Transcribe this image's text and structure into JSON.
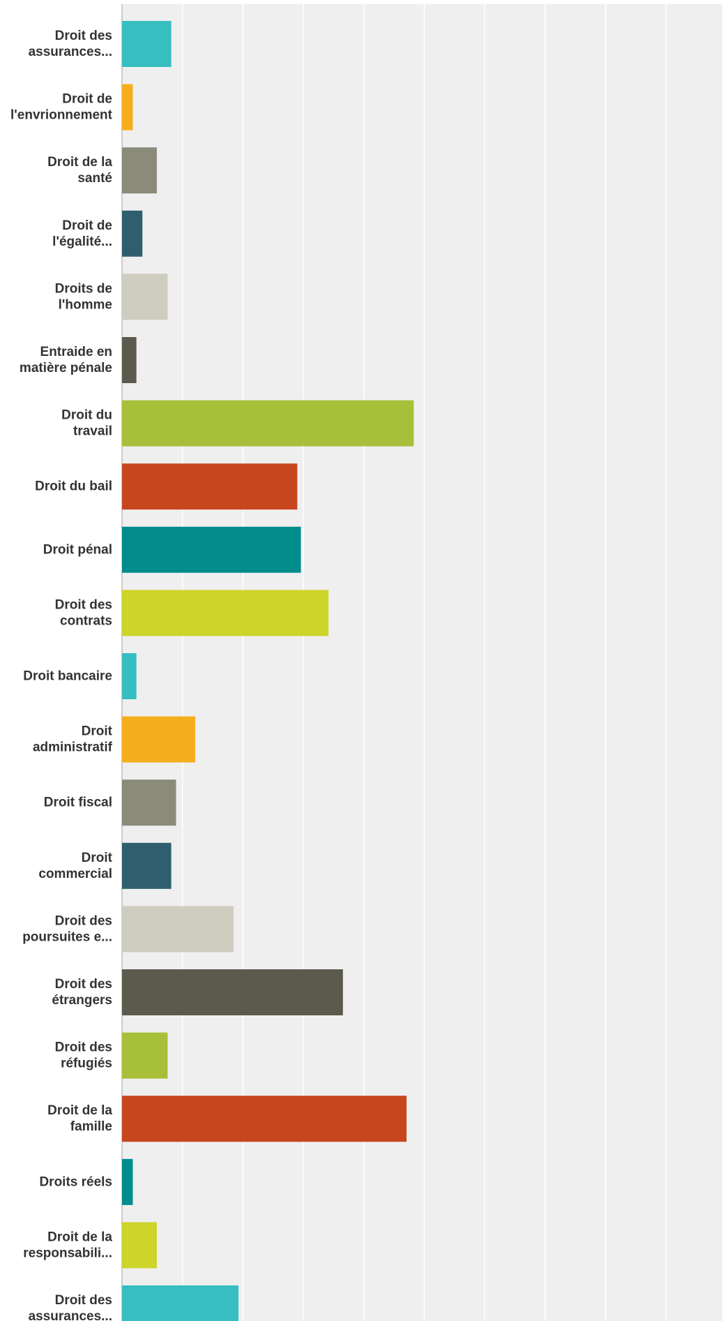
{
  "chart_data": {
    "type": "bar",
    "orientation": "horizontal",
    "title": "",
    "xlabel": "",
    "ylabel": "",
    "xlim": [
      0,
      50
    ],
    "grid": true,
    "legend": "none",
    "tick_labels_visible": false,
    "categories": [
      [
        "Droit des",
        "assurances..."
      ],
      [
        "Droit de",
        "l'envrionnement"
      ],
      [
        "Droit de la",
        "santé"
      ],
      [
        "Droit de",
        "l'égalité..."
      ],
      [
        "Droits de",
        "l'homme"
      ],
      [
        "Entraide en",
        "matière pénale"
      ],
      [
        "Droit du",
        "travail"
      ],
      [
        "Droit du bail"
      ],
      [
        "Droit pénal"
      ],
      [
        "Droit des",
        "contrats"
      ],
      [
        "Droit bancaire"
      ],
      [
        "Droit",
        "administratif"
      ],
      [
        "Droit fiscal"
      ],
      [
        "Droit",
        "commercial"
      ],
      [
        "Droit des",
        "poursuites e..."
      ],
      [
        "Droit des",
        "étrangers"
      ],
      [
        "Droit des",
        "réfugiés"
      ],
      [
        "Droit de la",
        "famille"
      ],
      [
        "Droits réels"
      ],
      [
        "Droit de la",
        "responsabili..."
      ],
      [
        "Droit des",
        "assurances..."
      ]
    ],
    "values": [
      4.1,
      0.9,
      2.9,
      1.7,
      3.8,
      1.2,
      24.3,
      14.6,
      14.9,
      17.2,
      1.2,
      6.1,
      4.5,
      4.1,
      9.3,
      18.4,
      3.8,
      23.7,
      0.9,
      2.9,
      9.7
    ],
    "colors": [
      "#36bec0",
      "#f6ad1e",
      "#8b8b7a",
      "#2f5f6f",
      "#cfcdc0",
      "#5c5a4c",
      "#a8bf3a",
      "#c8461e",
      "#028c8c",
      "#cdd42a",
      "#36bec0",
      "#f6ad1e",
      "#8b8b7a",
      "#2f5f6f",
      "#cfcdc0",
      "#5c5a4c",
      "#a8bf3a",
      "#c8461e",
      "#028c8c",
      "#cdd42a",
      "#36bec0"
    ]
  }
}
